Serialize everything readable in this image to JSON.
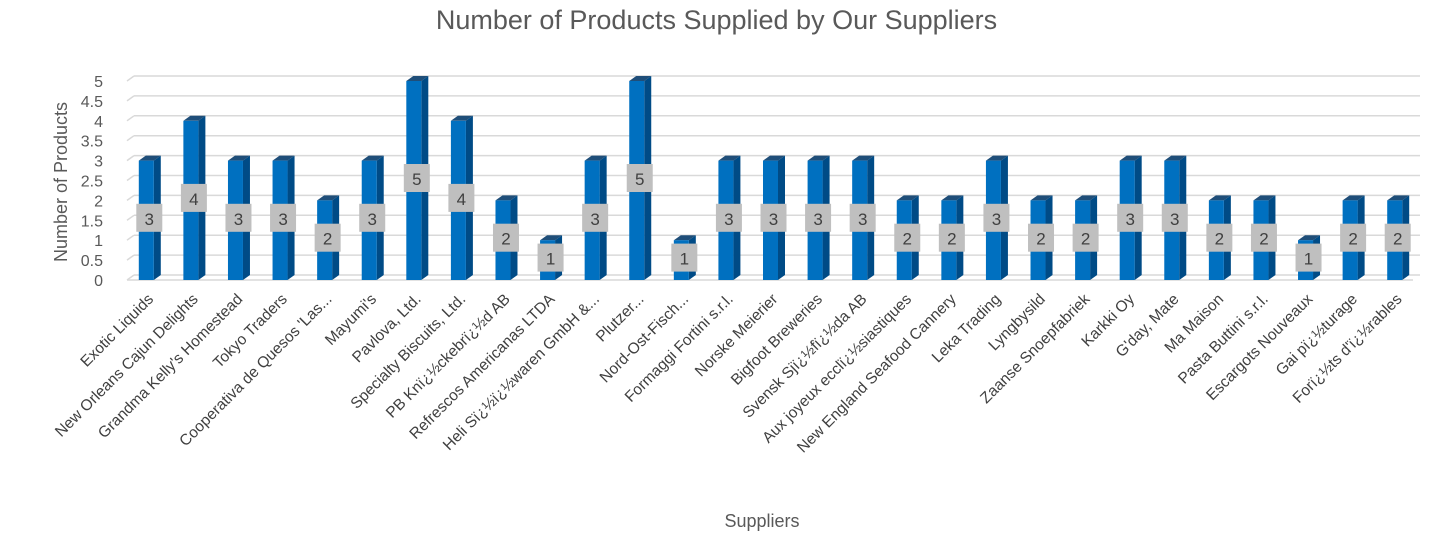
{
  "chart_data": {
    "type": "bar",
    "title": "Number of Products Supplied by Our Suppliers",
    "xlabel": "Suppliers",
    "ylabel": "Number of Products",
    "ylim": [
      0,
      5
    ],
    "yticks": [
      "0",
      "0.5",
      "1",
      "1.5",
      "2",
      "2.5",
      "3",
      "3.5",
      "4",
      "4.5",
      "5"
    ],
    "grid": true,
    "legend": "none",
    "colors": {
      "bar_front": "#0070c0",
      "bar_side": "#004b86",
      "bar_top": "#1f4e79",
      "label_bg": "#bfbfbf",
      "gridline": "#d9d9d9"
    },
    "categories": [
      "Exotic Liquids",
      "New Orleans Cajun Delights",
      "Grandma Kelly's Homestead",
      "Tokyo Traders",
      "Cooperativa de Quesos 'Las...",
      "Mayumi's",
      "Pavlova, Ltd.",
      "Specialty Biscuits, Ltd.",
      "PB Knï¿½ckebrï¿½d AB",
      "Refrescos Americanas LTDA",
      "Heli Sï¿½ï¿½waren GmbH &...",
      "Plutzer...",
      "Nord-Ost-Fisch...",
      "Formaggi Fortini s.r.l.",
      "Norske Meierier",
      "Bigfoot Breweries",
      "Svensk Sjï¿½fï¿½da AB",
      "Aux joyeux ecclï¿½siastiques",
      "New England Seafood Cannery",
      "Leka Trading",
      "Lyngbysild",
      "Zaanse Snoepfabriek",
      "Karkki Oy",
      "G'day, Mate",
      "Ma Maison",
      "Pasta Buttini s.r.l.",
      "Escargots Nouveaux",
      "Gai pï¿½turage",
      "Forï¿½ts d'ï¿½rables"
    ],
    "values": [
      3,
      4,
      3,
      3,
      2,
      3,
      5,
      4,
      2,
      1,
      3,
      5,
      1,
      3,
      3,
      3,
      3,
      2,
      2,
      3,
      2,
      2,
      3,
      3,
      2,
      2,
      1,
      2,
      2
    ],
    "data_labels": [
      "3",
      "4",
      "3",
      "3",
      "2",
      "3",
      "5",
      "4",
      "2",
      "1",
      "3",
      "5",
      "1",
      "3",
      "3",
      "3",
      "3",
      "2",
      "2",
      "3",
      "2",
      "2",
      "3",
      "3",
      "2",
      "2",
      "1",
      "2",
      "2"
    ]
  }
}
